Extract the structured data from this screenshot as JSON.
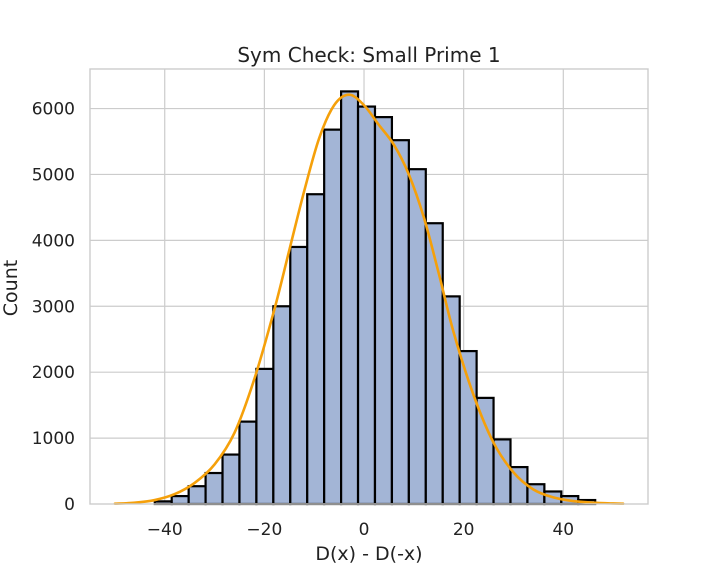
{
  "chart_data": {
    "type": "bar",
    "subtype": "histogram-with-kde",
    "title": "Sym Check: Small Prime 1",
    "xlabel": "D(x) - D(-x)",
    "ylabel": "Count",
    "xlim": [
      -55,
      57
    ],
    "ylim": [
      0,
      6600
    ],
    "xticks": [
      -40,
      -20,
      0,
      20,
      40
    ],
    "xtick_labels": [
      "−40",
      "−20",
      "0",
      "20",
      "40"
    ],
    "yticks": [
      0,
      1000,
      2000,
      3000,
      4000,
      5000,
      6000
    ],
    "ytick_labels": [
      "0",
      "1000",
      "2000",
      "3000",
      "4000",
      "5000",
      "6000"
    ],
    "grid": true,
    "bin_edges": [
      -42,
      -38.6,
      -35.2,
      -31.8,
      -28.4,
      -25,
      -21.6,
      -18.2,
      -14.8,
      -11.4,
      -8,
      -4.6,
      -1.2,
      2.2,
      5.6,
      9,
      12.4,
      15.8,
      19.2,
      22.6,
      26,
      29.4,
      32.8,
      36.2,
      39.6,
      43,
      46.4
    ],
    "counts": [
      40,
      120,
      270,
      470,
      750,
      1250,
      2050,
      3000,
      3900,
      4700,
      5680,
      6260,
      6030,
      5870,
      5520,
      5080,
      4260,
      3150,
      2320,
      1610,
      980,
      560,
      300,
      190,
      120,
      60
    ],
    "kde": {
      "name": "",
      "x": [
        -50,
        -46,
        -42,
        -38,
        -34,
        -30,
        -26,
        -22,
        -18,
        -15,
        -12,
        -9,
        -6,
        -3,
        0,
        3,
        6,
        9,
        12,
        15,
        18,
        22,
        26,
        30,
        34,
        38,
        42,
        46,
        50,
        52
      ],
      "y": [
        5,
        20,
        60,
        150,
        320,
        600,
        1080,
        1900,
        2950,
        3850,
        4750,
        5550,
        6050,
        6210,
        6050,
        5750,
        5450,
        5000,
        4350,
        3500,
        2600,
        1650,
        930,
        480,
        220,
        100,
        45,
        20,
        8,
        5
      ]
    },
    "colors": {
      "bar_fill": "#a3b5d6",
      "bar_edge": "#000000",
      "kde_line": "#f5a00a",
      "grid": "#cccccc"
    }
  }
}
